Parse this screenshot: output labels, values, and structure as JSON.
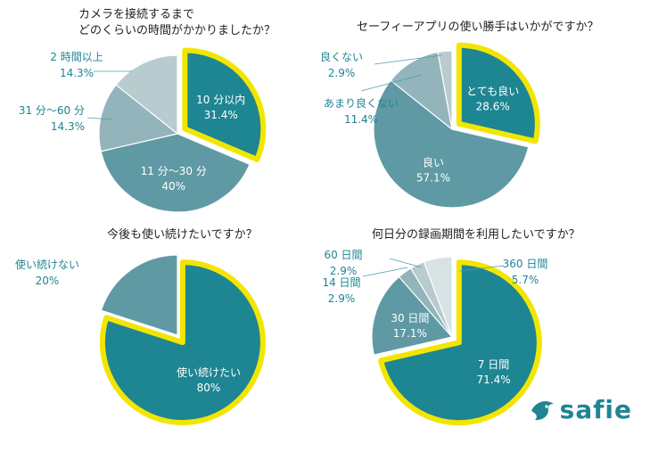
{
  "colors": {
    "ring": "#f2e600",
    "leader": "#4aa0a8",
    "outside_text": "#1f8593",
    "inside_text": "#ffffff"
  },
  "logo": {
    "text": "safie",
    "icon": "safie-bird-icon",
    "color": "#1f8593"
  },
  "chart_data": [
    {
      "type": "pie",
      "title": "カメラを接続するまで\nどのくらいの時間がかかりましたか？",
      "slices": [
        {
          "label": "10 分以内",
          "percent": "31.4%",
          "value": 31.4,
          "color": "#1e8592",
          "exploded": true
        },
        {
          "label": "11 分〜30 分",
          "percent": "40%",
          "value": 40.0,
          "color": "#5f9aa4"
        },
        {
          "label": "31 分〜60 分",
          "percent": "14.3%",
          "value": 14.3,
          "color": "#93b4bb"
        },
        {
          "label": "2 時間以上",
          "percent": "14.3%",
          "value": 14.3,
          "color": "#b8cbcf"
        }
      ]
    },
    {
      "type": "pie",
      "title": "セーフィーアプリの使い勝手はいかがですか？",
      "slices": [
        {
          "label": "とても良い",
          "percent": "28.6%",
          "value": 28.6,
          "color": "#1e8592",
          "exploded": true
        },
        {
          "label": "良い",
          "percent": "57.1%",
          "value": 57.1,
          "color": "#5f9aa4"
        },
        {
          "label": "あまり良くない",
          "percent": "11.4%",
          "value": 11.4,
          "color": "#93b4bb"
        },
        {
          "label": "良くない",
          "percent": "2.9%",
          "value": 2.9,
          "color": "#b8cbcf"
        }
      ]
    },
    {
      "type": "pie",
      "title": "今後も使い続けたいですか？",
      "slices": [
        {
          "label": "使い続けたい",
          "percent": "80%",
          "value": 80.0,
          "color": "#1e8592",
          "exploded": true
        },
        {
          "label": "使い続けない",
          "percent": "20%",
          "value": 20.0,
          "color": "#5f9aa4"
        }
      ]
    },
    {
      "type": "pie",
      "title": "何日分の録画期間を利用したいですか？",
      "slices": [
        {
          "label": "7 日間",
          "percent": "71.4%",
          "value": 71.4,
          "color": "#1e8592",
          "exploded": true
        },
        {
          "label": "30 日間",
          "percent": "17.1%",
          "value": 17.1,
          "color": "#5f9aa4"
        },
        {
          "label": "14 日間",
          "percent": "2.9%",
          "value": 2.9,
          "color": "#93b4bb"
        },
        {
          "label": "60 日間",
          "percent": "2.9%",
          "value": 2.9,
          "color": "#b8cbcf"
        },
        {
          "label": "360 日間",
          "percent": "5.7%",
          "value": 5.7,
          "color": "#d6e2e4"
        }
      ]
    }
  ]
}
